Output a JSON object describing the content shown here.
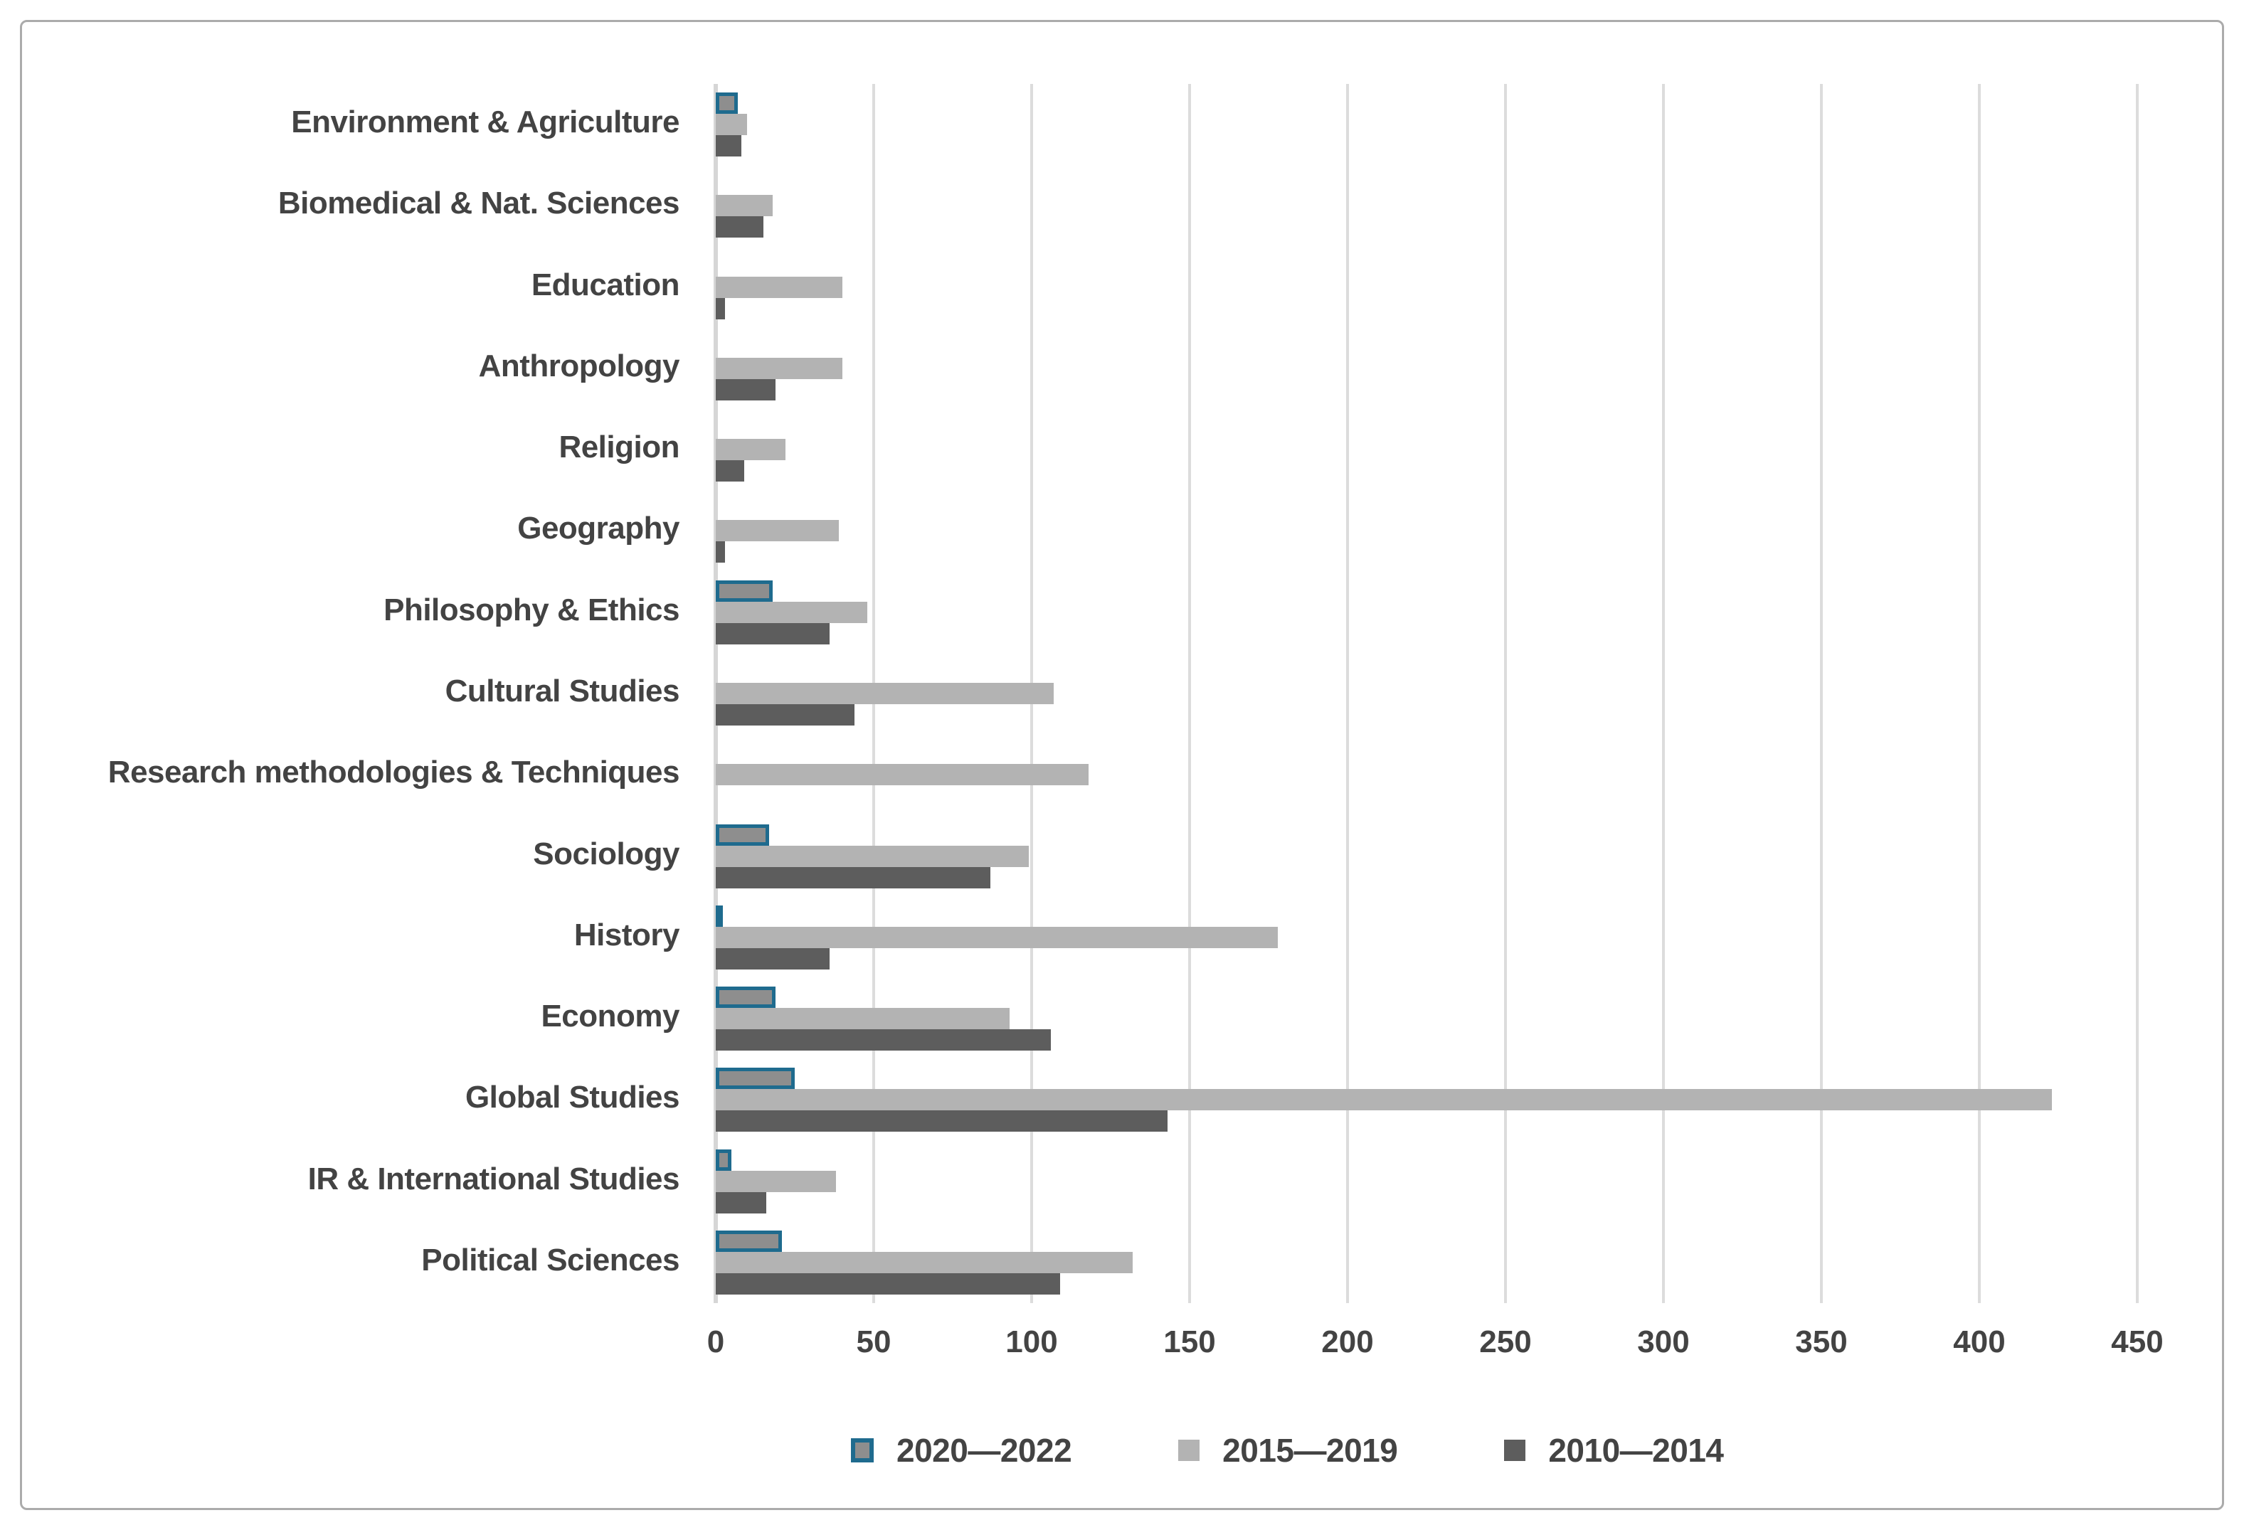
{
  "chart_data": {
    "type": "bar",
    "orientation": "horizontal",
    "title": "",
    "xlabel": "",
    "ylabel": "",
    "xlim": [
      0,
      450
    ],
    "xticks": [
      0,
      50,
      100,
      150,
      200,
      250,
      300,
      350,
      400,
      450
    ],
    "grid": true,
    "legend_position": "bottom",
    "categories": [
      "Environment & Agriculture",
      "Biomedical & Nat. Sciences",
      "Education",
      "Anthropology",
      "Religion",
      "Geography",
      "Philosophy & Ethics",
      "Cultural Studies",
      "Research methodologies & Techniques",
      "Sociology",
      "History",
      "Economy",
      "Global Studies",
      "IR & International Studies",
      "Political Sciences"
    ],
    "series": [
      {
        "name": "2020—2022",
        "fill_color": "#8e8e8e",
        "border_color": "#1f6b8e",
        "values": [
          7,
          0,
          0,
          0,
          0,
          0,
          18,
          0,
          0,
          17,
          2,
          19,
          25,
          5,
          21
        ]
      },
      {
        "name": "2015—2019",
        "fill_color": "#b3b3b3",
        "values": [
          10,
          18,
          40,
          40,
          22,
          39,
          48,
          107,
          118,
          99,
          178,
          93,
          423,
          38,
          132
        ]
      },
      {
        "name": "2010—2014",
        "fill_color": "#5d5d5d",
        "values": [
          8,
          15,
          3,
          19,
          9,
          3,
          36,
          44,
          0,
          87,
          36,
          106,
          143,
          16,
          109
        ]
      }
    ],
    "colors": {
      "gridline": "#dcdcdc",
      "axis_line": "#d6d6d6",
      "text": "#434343",
      "frame_border": "#ababab"
    }
  }
}
